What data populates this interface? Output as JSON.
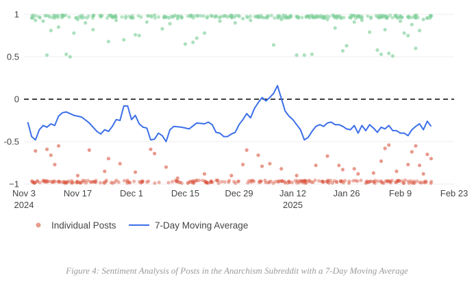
{
  "chart_data": {
    "type": "scatter",
    "title": "",
    "xlabel": "",
    "ylabel": "",
    "x_range": [
      "2024-11-03",
      "2025-02-23"
    ],
    "ylim": [
      -1,
      1
    ],
    "x_ticks": [
      {
        "date": "2024-11-03",
        "label": "Nov 3",
        "sublabel": "2024"
      },
      {
        "date": "2024-11-17",
        "label": "Nov 17",
        "sublabel": ""
      },
      {
        "date": "2024-12-01",
        "label": "Dec 1",
        "sublabel": ""
      },
      {
        "date": "2024-12-15",
        "label": "Dec 15",
        "sublabel": ""
      },
      {
        "date": "2024-12-29",
        "label": "Dec 29",
        "sublabel": ""
      },
      {
        "date": "2025-01-12",
        "label": "Jan 12",
        "sublabel": "2025"
      },
      {
        "date": "2025-01-26",
        "label": "Jan 26",
        "sublabel": ""
      },
      {
        "date": "2025-02-09",
        "label": "Feb 9",
        "sublabel": ""
      },
      {
        "date": "2025-02-23",
        "label": "Feb 23",
        "sublabel": ""
      }
    ],
    "y_ticks": [
      {
        "value": 1,
        "label": "1"
      },
      {
        "value": 0.5,
        "label": "0.5"
      },
      {
        "value": 0,
        "label": "0"
      },
      {
        "value": -0.5,
        "label": "-0.5"
      },
      {
        "value": -1,
        "label": "−1"
      }
    ],
    "grid": "horizontal",
    "reference_line": {
      "y": 0,
      "style": "dashed",
      "color": "#000000"
    },
    "legend": {
      "position": "bottom-left"
    },
    "series": [
      {
        "name": "Individual Posts",
        "kind": "scatter",
        "positive_color": "#7fcf9a",
        "negative_color": "#d9553f",
        "points": [
          {
            "x": "2024-11-06",
            "y": 0.93
          },
          {
            "x": "2024-11-07",
            "y": 0.97
          },
          {
            "x": "2024-11-08",
            "y": 0.92
          },
          {
            "x": "2024-11-09",
            "y": 0.52
          },
          {
            "x": "2024-11-10",
            "y": 0.81
          },
          {
            "x": "2024-11-11",
            "y": 0.96
          },
          {
            "x": "2024-11-12",
            "y": 0.85
          },
          {
            "x": "2024-11-13",
            "y": 0.99
          },
          {
            "x": "2024-11-14",
            "y": 0.53
          },
          {
            "x": "2024-11-15",
            "y": 0.5
          },
          {
            "x": "2024-11-16",
            "y": 0.78
          },
          {
            "x": "2024-11-17",
            "y": 0.94
          },
          {
            "x": "2024-11-19",
            "y": 0.9
          },
          {
            "x": "2024-11-21",
            "y": 0.82
          },
          {
            "x": "2024-11-23",
            "y": 0.97
          },
          {
            "x": "2024-11-25",
            "y": 0.68
          },
          {
            "x": "2024-11-27",
            "y": 0.93
          },
          {
            "x": "2024-11-29",
            "y": 0.7
          },
          {
            "x": "2024-12-01",
            "y": 0.96
          },
          {
            "x": "2024-12-02",
            "y": 0.76
          },
          {
            "x": "2024-12-03",
            "y": 0.75
          },
          {
            "x": "2024-12-05",
            "y": 0.91
          },
          {
            "x": "2024-12-07",
            "y": 0.99
          },
          {
            "x": "2024-12-09",
            "y": 0.83
          },
          {
            "x": "2024-12-11",
            "y": 0.89
          },
          {
            "x": "2024-12-13",
            "y": 0.95
          },
          {
            "x": "2024-12-15",
            "y": 0.65
          },
          {
            "x": "2024-12-17",
            "y": 0.67
          },
          {
            "x": "2024-12-18",
            "y": 0.72
          },
          {
            "x": "2024-12-20",
            "y": 0.78
          },
          {
            "x": "2024-12-22",
            "y": 0.98
          },
          {
            "x": "2024-12-24",
            "y": 0.92
          },
          {
            "x": "2024-12-26",
            "y": 0.97
          },
          {
            "x": "2024-12-28",
            "y": 0.9
          },
          {
            "x": "2024-12-30",
            "y": 0.95
          },
          {
            "x": "2025-01-01",
            "y": 0.93
          },
          {
            "x": "2025-01-03",
            "y": 0.98
          },
          {
            "x": "2025-01-05",
            "y": 0.96
          },
          {
            "x": "2025-01-07",
            "y": 0.64
          },
          {
            "x": "2025-01-09",
            "y": 0.94
          },
          {
            "x": "2025-01-11",
            "y": 0.96
          },
          {
            "x": "2025-01-13",
            "y": 0.52
          },
          {
            "x": "2025-01-15",
            "y": 0.52
          },
          {
            "x": "2025-01-17",
            "y": 0.53
          },
          {
            "x": "2025-01-19",
            "y": 0.97
          },
          {
            "x": "2025-01-21",
            "y": 0.94
          },
          {
            "x": "2025-01-23",
            "y": 0.84
          },
          {
            "x": "2025-01-25",
            "y": 0.57
          },
          {
            "x": "2025-01-26",
            "y": 0.63
          },
          {
            "x": "2025-01-28",
            "y": 0.91
          },
          {
            "x": "2025-01-30",
            "y": 0.93
          },
          {
            "x": "2025-02-01",
            "y": 0.79
          },
          {
            "x": "2025-02-03",
            "y": 0.58
          },
          {
            "x": "2025-02-04",
            "y": 0.53
          },
          {
            "x": "2025-02-05",
            "y": 0.82
          },
          {
            "x": "2025-02-06",
            "y": 0.54
          },
          {
            "x": "2025-02-07",
            "y": 0.51
          },
          {
            "x": "2025-02-09",
            "y": 0.92
          },
          {
            "x": "2025-02-10",
            "y": 0.78
          },
          {
            "x": "2025-02-11",
            "y": 0.75
          },
          {
            "x": "2025-02-12",
            "y": 0.88
          },
          {
            "x": "2025-02-13",
            "y": 0.6
          },
          {
            "x": "2025-02-14",
            "y": 0.81
          },
          {
            "x": "2025-02-15",
            "y": 0.94
          },
          {
            "x": "2025-02-16",
            "y": 0.96
          },
          {
            "x": "2024-11-06",
            "y": -0.61
          },
          {
            "x": "2024-11-09",
            "y": -0.59
          },
          {
            "x": "2024-11-10",
            "y": -0.66
          },
          {
            "x": "2024-11-11",
            "y": -0.77
          },
          {
            "x": "2024-11-12",
            "y": -0.55
          },
          {
            "x": "2024-11-17",
            "y": -0.9
          },
          {
            "x": "2024-11-20",
            "y": -0.6
          },
          {
            "x": "2024-11-24",
            "y": -0.85
          },
          {
            "x": "2024-11-25",
            "y": -0.7
          },
          {
            "x": "2024-11-28",
            "y": -0.76
          },
          {
            "x": "2024-12-02",
            "y": -0.86
          },
          {
            "x": "2024-12-06",
            "y": -0.59
          },
          {
            "x": "2024-12-07",
            "y": -0.64
          },
          {
            "x": "2024-12-10",
            "y": -0.8
          },
          {
            "x": "2024-12-13",
            "y": -0.93
          },
          {
            "x": "2024-12-20",
            "y": -0.88
          },
          {
            "x": "2024-12-27",
            "y": -0.9
          },
          {
            "x": "2024-12-30",
            "y": -0.77
          },
          {
            "x": "2024-12-31",
            "y": -0.6
          },
          {
            "x": "2025-01-03",
            "y": -0.66
          },
          {
            "x": "2025-01-04",
            "y": -0.79
          },
          {
            "x": "2025-01-06",
            "y": -0.76
          },
          {
            "x": "2025-01-09",
            "y": -0.82
          },
          {
            "x": "2025-01-13",
            "y": -0.9
          },
          {
            "x": "2025-01-18",
            "y": -0.78
          },
          {
            "x": "2025-01-21",
            "y": -0.67
          },
          {
            "x": "2025-01-24",
            "y": -0.78
          },
          {
            "x": "2025-01-25",
            "y": -0.83
          },
          {
            "x": "2025-01-28",
            "y": -0.82
          },
          {
            "x": "2025-01-29",
            "y": -0.88
          },
          {
            "x": "2025-02-02",
            "y": -0.87
          },
          {
            "x": "2025-02-04",
            "y": -0.73
          },
          {
            "x": "2025-02-05",
            "y": -0.58
          },
          {
            "x": "2025-02-06",
            "y": -0.54
          },
          {
            "x": "2025-02-08",
            "y": -0.85
          },
          {
            "x": "2025-02-11",
            "y": -0.77
          },
          {
            "x": "2025-02-12",
            "y": -0.62
          },
          {
            "x": "2025-02-13",
            "y": -0.55
          },
          {
            "x": "2025-02-14",
            "y": -0.78
          },
          {
            "x": "2025-02-15",
            "y": -0.88
          },
          {
            "x": "2025-02-16",
            "y": -0.65
          },
          {
            "x": "2025-02-17",
            "y": -0.7
          }
        ],
        "dense_rows": [
          {
            "y": 0.99,
            "label": "dense cluster at y≈1"
          },
          {
            "y": -0.99,
            "label": "dense cluster at y≈−1"
          }
        ]
      },
      {
        "name": "7-Day Moving Average",
        "kind": "line",
        "color": "#3a6ee8",
        "points": [
          {
            "x": "2024-11-04",
            "y": -0.27
          },
          {
            "x": "2024-11-05",
            "y": -0.44
          },
          {
            "x": "2024-11-06",
            "y": -0.48
          },
          {
            "x": "2024-11-07",
            "y": -0.36
          },
          {
            "x": "2024-11-08",
            "y": -0.31
          },
          {
            "x": "2024-11-09",
            "y": -0.33
          },
          {
            "x": "2024-11-10",
            "y": -0.29
          },
          {
            "x": "2024-11-11",
            "y": -0.31
          },
          {
            "x": "2024-11-12",
            "y": -0.2
          },
          {
            "x": "2024-11-13",
            "y": -0.16
          },
          {
            "x": "2024-11-14",
            "y": -0.15
          },
          {
            "x": "2024-11-16",
            "y": -0.19
          },
          {
            "x": "2024-11-18",
            "y": -0.21
          },
          {
            "x": "2024-11-20",
            "y": -0.28
          },
          {
            "x": "2024-11-22",
            "y": -0.38
          },
          {
            "x": "2024-11-23",
            "y": -0.41
          },
          {
            "x": "2024-11-24",
            "y": -0.36
          },
          {
            "x": "2024-11-25",
            "y": -0.38
          },
          {
            "x": "2024-11-26",
            "y": -0.32
          },
          {
            "x": "2024-11-27",
            "y": -0.24
          },
          {
            "x": "2024-11-28",
            "y": -0.25
          },
          {
            "x": "2024-11-29",
            "y": -0.08
          },
          {
            "x": "2024-11-30",
            "y": -0.08
          },
          {
            "x": "2024-12-01",
            "y": -0.24
          },
          {
            "x": "2024-12-02",
            "y": -0.19
          },
          {
            "x": "2024-12-03",
            "y": -0.29
          },
          {
            "x": "2024-12-04",
            "y": -0.33
          },
          {
            "x": "2024-12-05",
            "y": -0.34
          },
          {
            "x": "2024-12-06",
            "y": -0.48
          },
          {
            "x": "2024-12-07",
            "y": -0.47
          },
          {
            "x": "2024-12-08",
            "y": -0.4
          },
          {
            "x": "2024-12-09",
            "y": -0.43
          },
          {
            "x": "2024-12-10",
            "y": -0.5
          },
          {
            "x": "2024-12-11",
            "y": -0.36
          },
          {
            "x": "2024-12-12",
            "y": -0.32
          },
          {
            "x": "2024-12-14",
            "y": -0.33
          },
          {
            "x": "2024-12-16",
            "y": -0.35
          },
          {
            "x": "2024-12-18",
            "y": -0.28
          },
          {
            "x": "2024-12-20",
            "y": -0.29
          },
          {
            "x": "2024-12-21",
            "y": -0.27
          },
          {
            "x": "2024-12-22",
            "y": -0.3
          },
          {
            "x": "2024-12-23",
            "y": -0.39
          },
          {
            "x": "2024-12-24",
            "y": -0.4
          },
          {
            "x": "2024-12-25",
            "y": -0.44
          },
          {
            "x": "2024-12-26",
            "y": -0.44
          },
          {
            "x": "2024-12-27",
            "y": -0.41
          },
          {
            "x": "2024-12-28",
            "y": -0.39
          },
          {
            "x": "2024-12-29",
            "y": -0.3
          },
          {
            "x": "2024-12-30",
            "y": -0.24
          },
          {
            "x": "2024-12-31",
            "y": -0.17
          },
          {
            "x": "2025-01-01",
            "y": -0.22
          },
          {
            "x": "2025-01-02",
            "y": -0.11
          },
          {
            "x": "2025-01-03",
            "y": -0.04
          },
          {
            "x": "2025-01-04",
            "y": 0.02
          },
          {
            "x": "2025-01-05",
            "y": -0.02
          },
          {
            "x": "2025-01-06",
            "y": 0.02
          },
          {
            "x": "2025-01-07",
            "y": 0.07
          },
          {
            "x": "2025-01-08",
            "y": 0.16
          },
          {
            "x": "2025-01-09",
            "y": 0.01
          },
          {
            "x": "2025-01-10",
            "y": -0.14
          },
          {
            "x": "2025-01-11",
            "y": -0.2
          },
          {
            "x": "2025-01-12",
            "y": -0.24
          },
          {
            "x": "2025-01-13",
            "y": -0.3
          },
          {
            "x": "2025-01-14",
            "y": -0.36
          },
          {
            "x": "2025-01-15",
            "y": -0.48
          },
          {
            "x": "2025-01-16",
            "y": -0.45
          },
          {
            "x": "2025-01-17",
            "y": -0.38
          },
          {
            "x": "2025-01-18",
            "y": -0.32
          },
          {
            "x": "2025-01-19",
            "y": -0.3
          },
          {
            "x": "2025-01-20",
            "y": -0.32
          },
          {
            "x": "2025-01-21",
            "y": -0.28
          },
          {
            "x": "2025-01-22",
            "y": -0.27
          },
          {
            "x": "2025-01-23",
            "y": -0.3
          },
          {
            "x": "2025-01-24",
            "y": -0.3
          },
          {
            "x": "2025-01-25",
            "y": -0.32
          },
          {
            "x": "2025-01-26",
            "y": -0.35
          },
          {
            "x": "2025-01-27",
            "y": -0.36
          },
          {
            "x": "2025-01-28",
            "y": -0.31
          },
          {
            "x": "2025-01-29",
            "y": -0.4
          },
          {
            "x": "2025-01-30",
            "y": -0.31
          },
          {
            "x": "2025-01-31",
            "y": -0.37
          },
          {
            "x": "2025-02-01",
            "y": -0.3
          },
          {
            "x": "2025-02-02",
            "y": -0.34
          },
          {
            "x": "2025-02-03",
            "y": -0.39
          },
          {
            "x": "2025-02-04",
            "y": -0.33
          },
          {
            "x": "2025-02-05",
            "y": -0.35
          },
          {
            "x": "2025-02-06",
            "y": -0.31
          },
          {
            "x": "2025-02-07",
            "y": -0.37
          },
          {
            "x": "2025-02-08",
            "y": -0.37
          },
          {
            "x": "2025-02-09",
            "y": -0.4
          },
          {
            "x": "2025-02-10",
            "y": -0.4
          },
          {
            "x": "2025-02-11",
            "y": -0.43
          },
          {
            "x": "2025-02-12",
            "y": -0.36
          },
          {
            "x": "2025-02-13",
            "y": -0.32
          },
          {
            "x": "2025-02-14",
            "y": -0.29
          },
          {
            "x": "2025-02-15",
            "y": -0.36
          },
          {
            "x": "2025-02-16",
            "y": -0.26
          },
          {
            "x": "2025-02-17",
            "y": -0.32
          }
        ]
      }
    ]
  },
  "legend": {
    "items": [
      {
        "label": "Individual Posts",
        "color": "#e0836f",
        "marker": "dot"
      },
      {
        "label": "7-Day Moving Average",
        "color": "#3a6ee8",
        "marker": "line"
      }
    ]
  },
  "caption": "Figure 4: Sentiment Analysis of Posts in the Anarchism Subreddit with a 7-Day Moving Average"
}
